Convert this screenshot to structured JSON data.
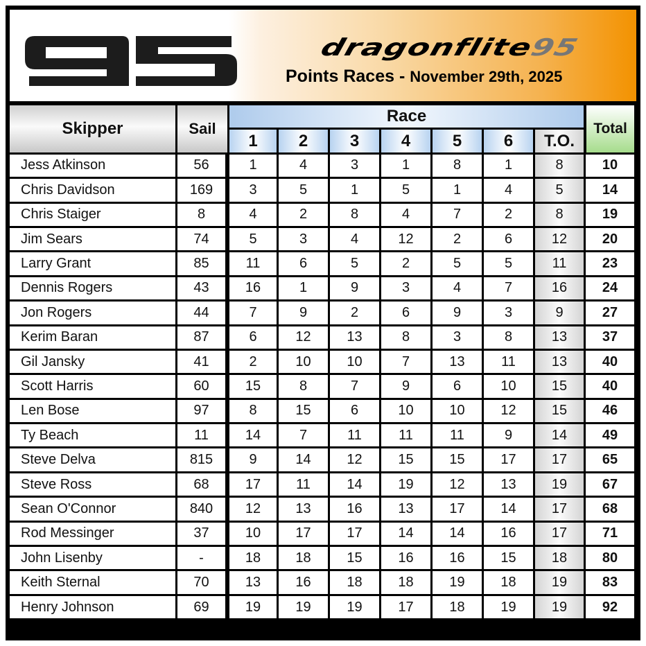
{
  "header": {
    "logo_text": "95",
    "brand_main": "dragonflite",
    "brand_suffix": "95",
    "title": "Points Races - ",
    "date": "November 29th, 2025"
  },
  "colors": {
    "header_accent": "#f39200",
    "race_header": "#aecbec",
    "total_header": "#a6dc8c"
  },
  "columns": {
    "skipper": "Skipper",
    "sail": "Sail",
    "race": "Race",
    "races": [
      "1",
      "2",
      "3",
      "4",
      "5",
      "6"
    ],
    "throwout": "T.O.",
    "total": "Total"
  },
  "rows": [
    {
      "skipper": "Jess Atkinson",
      "sail": "56",
      "races": [
        "1",
        "4",
        "3",
        "1",
        "8",
        "1"
      ],
      "to": "8",
      "total": "10"
    },
    {
      "skipper": "Chris Davidson",
      "sail": "169",
      "races": [
        "3",
        "5",
        "1",
        "5",
        "1",
        "4"
      ],
      "to": "5",
      "total": "14"
    },
    {
      "skipper": "Chris Staiger",
      "sail": "8",
      "races": [
        "4",
        "2",
        "8",
        "4",
        "7",
        "2"
      ],
      "to": "8",
      "total": "19"
    },
    {
      "skipper": "Jim Sears",
      "sail": "74",
      "races": [
        "5",
        "3",
        "4",
        "12",
        "2",
        "6"
      ],
      "to": "12",
      "total": "20"
    },
    {
      "skipper": "Larry Grant",
      "sail": "85",
      "races": [
        "11",
        "6",
        "5",
        "2",
        "5",
        "5"
      ],
      "to": "11",
      "total": "23"
    },
    {
      "skipper": "Dennis Rogers",
      "sail": "43",
      "races": [
        "16",
        "1",
        "9",
        "3",
        "4",
        "7"
      ],
      "to": "16",
      "total": "24"
    },
    {
      "skipper": "Jon Rogers",
      "sail": "44",
      "races": [
        "7",
        "9",
        "2",
        "6",
        "9",
        "3"
      ],
      "to": "9",
      "total": "27"
    },
    {
      "skipper": "Kerim Baran",
      "sail": "87",
      "races": [
        "6",
        "12",
        "13",
        "8",
        "3",
        "8"
      ],
      "to": "13",
      "total": "37"
    },
    {
      "skipper": "Gil Jansky",
      "sail": "41",
      "races": [
        "2",
        "10",
        "10",
        "7",
        "13",
        "11"
      ],
      "to": "13",
      "total": "40"
    },
    {
      "skipper": "Scott Harris",
      "sail": "60",
      "races": [
        "15",
        "8",
        "7",
        "9",
        "6",
        "10"
      ],
      "to": "15",
      "total": "40"
    },
    {
      "skipper": "Len Bose",
      "sail": "97",
      "races": [
        "8",
        "15",
        "6",
        "10",
        "10",
        "12"
      ],
      "to": "15",
      "total": "46"
    },
    {
      "skipper": "Ty Beach",
      "sail": "11",
      "races": [
        "14",
        "7",
        "11",
        "11",
        "11",
        "9"
      ],
      "to": "14",
      "total": "49"
    },
    {
      "skipper": "Steve Delva",
      "sail": "815",
      "races": [
        "9",
        "14",
        "12",
        "15",
        "15",
        "17"
      ],
      "to": "17",
      "total": "65"
    },
    {
      "skipper": "Steve Ross",
      "sail": "68",
      "races": [
        "17",
        "11",
        "14",
        "19",
        "12",
        "13"
      ],
      "to": "19",
      "total": "67"
    },
    {
      "skipper": "Sean O'Connor",
      "sail": "840",
      "races": [
        "12",
        "13",
        "16",
        "13",
        "17",
        "14"
      ],
      "to": "17",
      "total": "68"
    },
    {
      "skipper": "Rod Messinger",
      "sail": "37",
      "races": [
        "10",
        "17",
        "17",
        "14",
        "14",
        "16"
      ],
      "to": "17",
      "total": "71"
    },
    {
      "skipper": "John Lisenby",
      "sail": "-",
      "races": [
        "18",
        "18",
        "15",
        "16",
        "16",
        "15"
      ],
      "to": "18",
      "total": "80"
    },
    {
      "skipper": "Keith Sternal",
      "sail": "70",
      "races": [
        "13",
        "16",
        "18",
        "18",
        "19",
        "18"
      ],
      "to": "19",
      "total": "83"
    },
    {
      "skipper": "Henry Johnson",
      "sail": "69",
      "races": [
        "19",
        "19",
        "19",
        "17",
        "18",
        "19"
      ],
      "to": "19",
      "total": "92"
    }
  ]
}
